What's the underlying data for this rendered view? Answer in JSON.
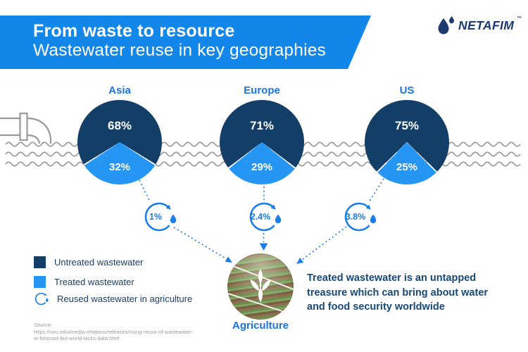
{
  "header": {
    "title": "From waste to resource",
    "subtitle": "Wastewater reuse in key geographies"
  },
  "logo": {
    "brand": "NETAFIM",
    "trademark": "™",
    "icon": "water-drops-icon"
  },
  "chart_data": {
    "type": "pie",
    "title": "From waste to resource — Wastewater reuse in key geographies",
    "units": "%",
    "series": [
      {
        "name": "Asia",
        "untreated_pct": 68,
        "treated_pct": 32,
        "reused_in_agriculture_pct": 1
      },
      {
        "name": "Europe",
        "untreated_pct": 71,
        "treated_pct": 29,
        "reused_in_agriculture_pct": 2.4
      },
      {
        "name": "US",
        "untreated_pct": 75,
        "treated_pct": 25,
        "reused_in_agriculture_pct": 3.8
      }
    ],
    "legend": [
      "Untreated wastewater",
      "Treated wastewater",
      "Reused wastewater in agriculture"
    ],
    "legend_position": "bottom-left",
    "colors": {
      "untreated": "#123E68",
      "treated": "#2596F3"
    }
  },
  "pies": [
    {
      "region": "Asia",
      "untreated_label": "68%",
      "treated_label": "32%",
      "badge_label": "1%"
    },
    {
      "region": "Europe",
      "untreated_label": "71%",
      "treated_label": "29%",
      "badge_label": "2.4%"
    },
    {
      "region": "US",
      "untreated_label": "75%",
      "treated_label": "25%",
      "badge_label": "3.8%"
    }
  ],
  "legend": {
    "items": [
      {
        "icon": "untreated-swatch",
        "label": "Untreated wastewater"
      },
      {
        "icon": "treated-swatch",
        "label": "Treated wastewater"
      },
      {
        "icon": "reuse-cycle-icon",
        "label": "Reused wastewater in agriculture"
      }
    ]
  },
  "agriculture": {
    "label": "Agriculture",
    "image": "crop-field-photo",
    "overlay_icon": "plant-icon"
  },
  "callout": {
    "text": "Treated wastewater is an untapped treasure which can bring about water and food security worldwide"
  },
  "source": {
    "label": "Source:",
    "url_line1": "https://unu.edu/media-relations/releases/rising-reuse-of-wastewater-",
    "url_line2": "in-forecast-but-world-lacks-data.html"
  },
  "colors": {
    "banner": "#1286E9",
    "accent": "#1A7DE8",
    "label_blue": "#1A74E4",
    "untreated": "#123E68",
    "treated": "#2596F3",
    "wave_gray": "#9A9A9A"
  }
}
